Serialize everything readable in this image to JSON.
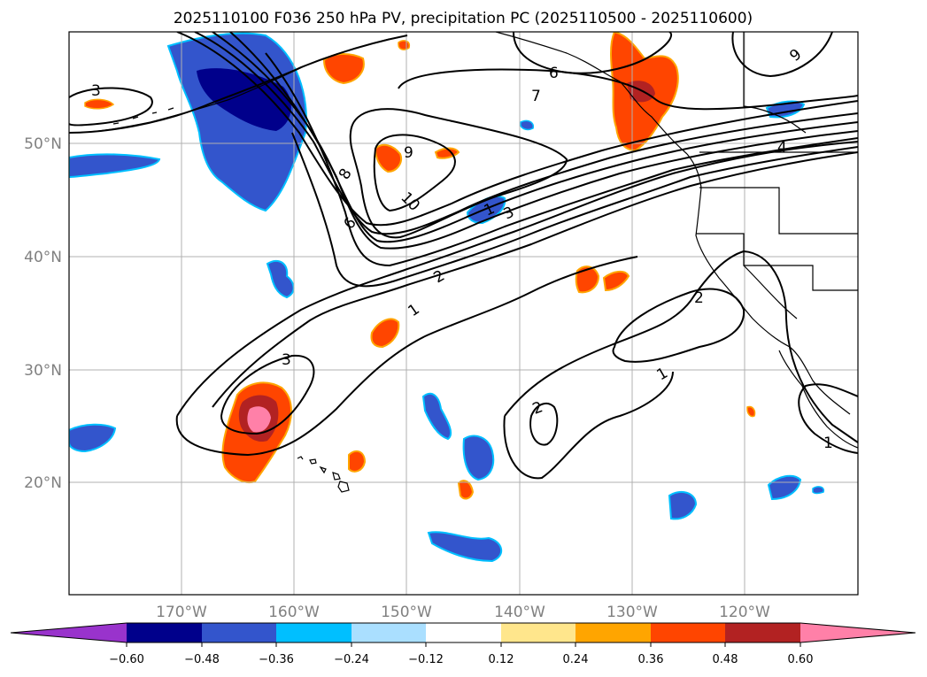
{
  "title": "2025110100 F036 250 hPa PV, precipitation PC (2025110500 - 2025110600)",
  "map": {
    "lat_labels": [
      "50°N",
      "40°N",
      "30°N",
      "20°N"
    ],
    "lon_labels": [
      "170°W",
      "160°W",
      "150°W",
      "140°W",
      "130°W",
      "120°W"
    ],
    "contour_labels": [
      "3",
      "3",
      "8",
      "9",
      "10",
      "6",
      "1",
      "2",
      "1",
      "3",
      "6",
      "7",
      "2",
      "1",
      "2",
      "1",
      "4",
      "9"
    ],
    "colors": {
      "contour": "#000000",
      "coast": "#000000",
      "grid": "#b0b0b0",
      "frame": "#000000"
    }
  },
  "colorbar": {
    "ticks": [
      "−0.60",
      "−0.48",
      "−0.36",
      "−0.24",
      "−0.12",
      "0.12",
      "0.24",
      "0.36",
      "0.48",
      "0.60"
    ],
    "colors": [
      "#9933cc",
      "#00008b",
      "#3355cc",
      "#00bfff",
      "#aadfff",
      "#ffffff",
      "#ffe68c",
      "#ffa500",
      "#ff4500",
      "#b22222",
      "#ff80a8"
    ]
  }
}
